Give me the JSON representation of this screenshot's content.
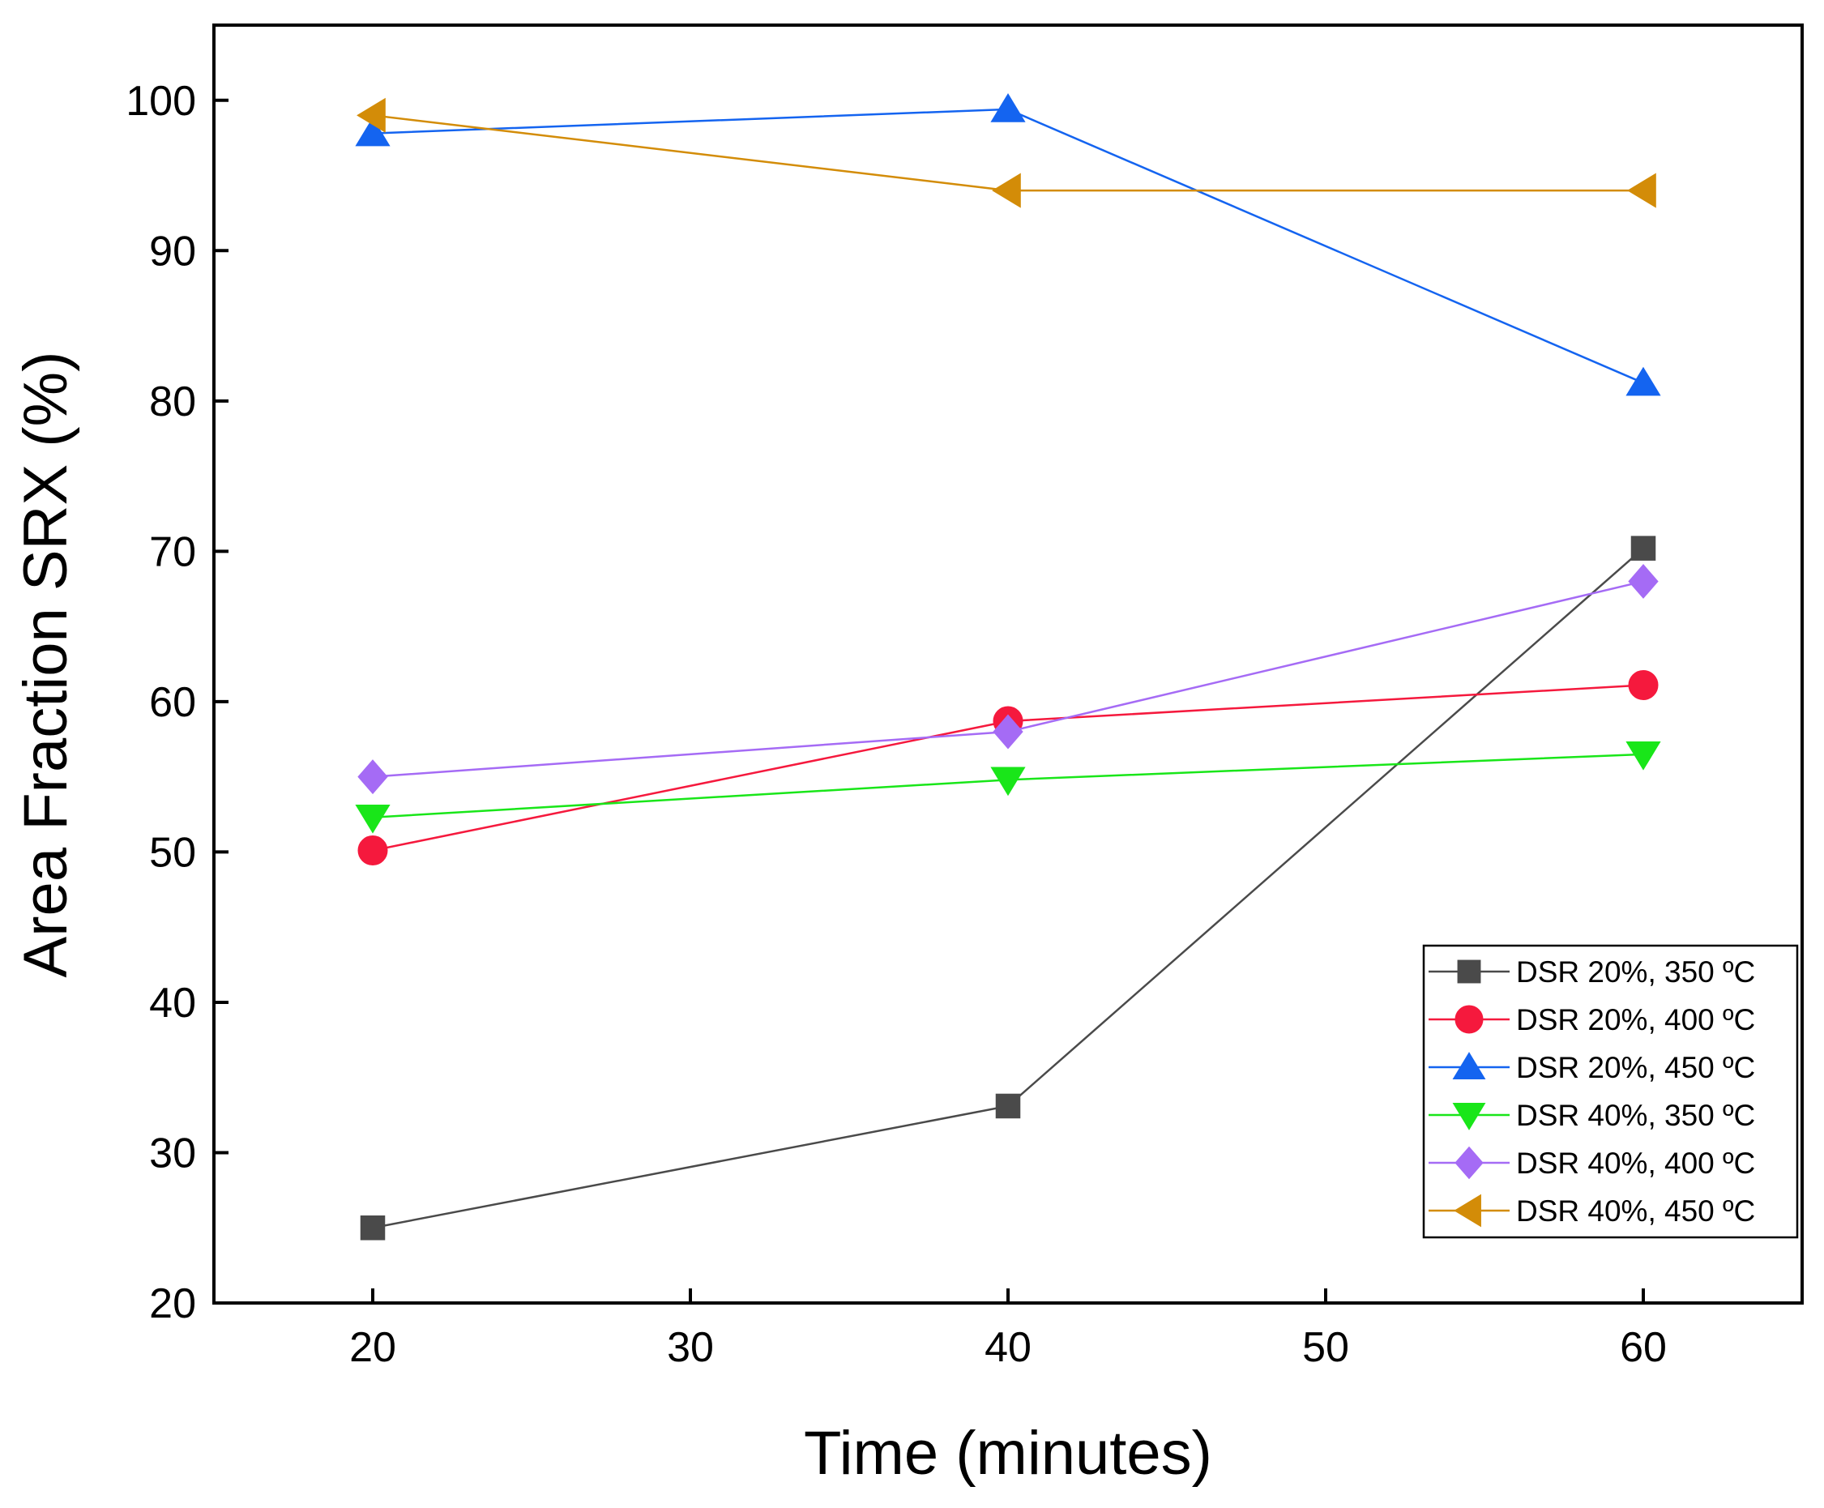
{
  "chart_data": {
    "type": "line",
    "xlabel": "Time (minutes)",
    "ylabel": "Area Fraction SRX (%)",
    "xlim": [
      15,
      65
    ],
    "ylim": [
      20,
      105
    ],
    "xticks": [
      20,
      30,
      40,
      50,
      60
    ],
    "yticks": [
      20,
      30,
      40,
      50,
      60,
      70,
      80,
      90,
      100
    ],
    "x": [
      20,
      40,
      60
    ],
    "legend_position": "bottom-right",
    "series": [
      {
        "name": "DSR 20%, 350 ºC",
        "values": [
          25.0,
          33.1,
          70.2
        ],
        "color": "#4a4a4a",
        "marker": "square"
      },
      {
        "name": "DSR 20%, 400 ºC",
        "values": [
          50.1,
          58.7,
          61.1
        ],
        "color": "#f5193d",
        "marker": "circle"
      },
      {
        "name": "DSR 20%, 450 ºC",
        "values": [
          97.8,
          99.4,
          81.2
        ],
        "color": "#1464f0",
        "marker": "triangle-up"
      },
      {
        "name": "DSR 40%, 350 ºC",
        "values": [
          52.3,
          54.8,
          56.5
        ],
        "color": "#19e619",
        "marker": "triangle-down"
      },
      {
        "name": "DSR 40%, 400 ºC",
        "values": [
          55.0,
          58.0,
          68.0
        ],
        "color": "#a56bf5",
        "marker": "diamond"
      },
      {
        "name": "DSR 40%, 450 ºC",
        "values": [
          99.0,
          94.0,
          94.0
        ],
        "color": "#d38c08",
        "marker": "triangle-left"
      }
    ]
  }
}
